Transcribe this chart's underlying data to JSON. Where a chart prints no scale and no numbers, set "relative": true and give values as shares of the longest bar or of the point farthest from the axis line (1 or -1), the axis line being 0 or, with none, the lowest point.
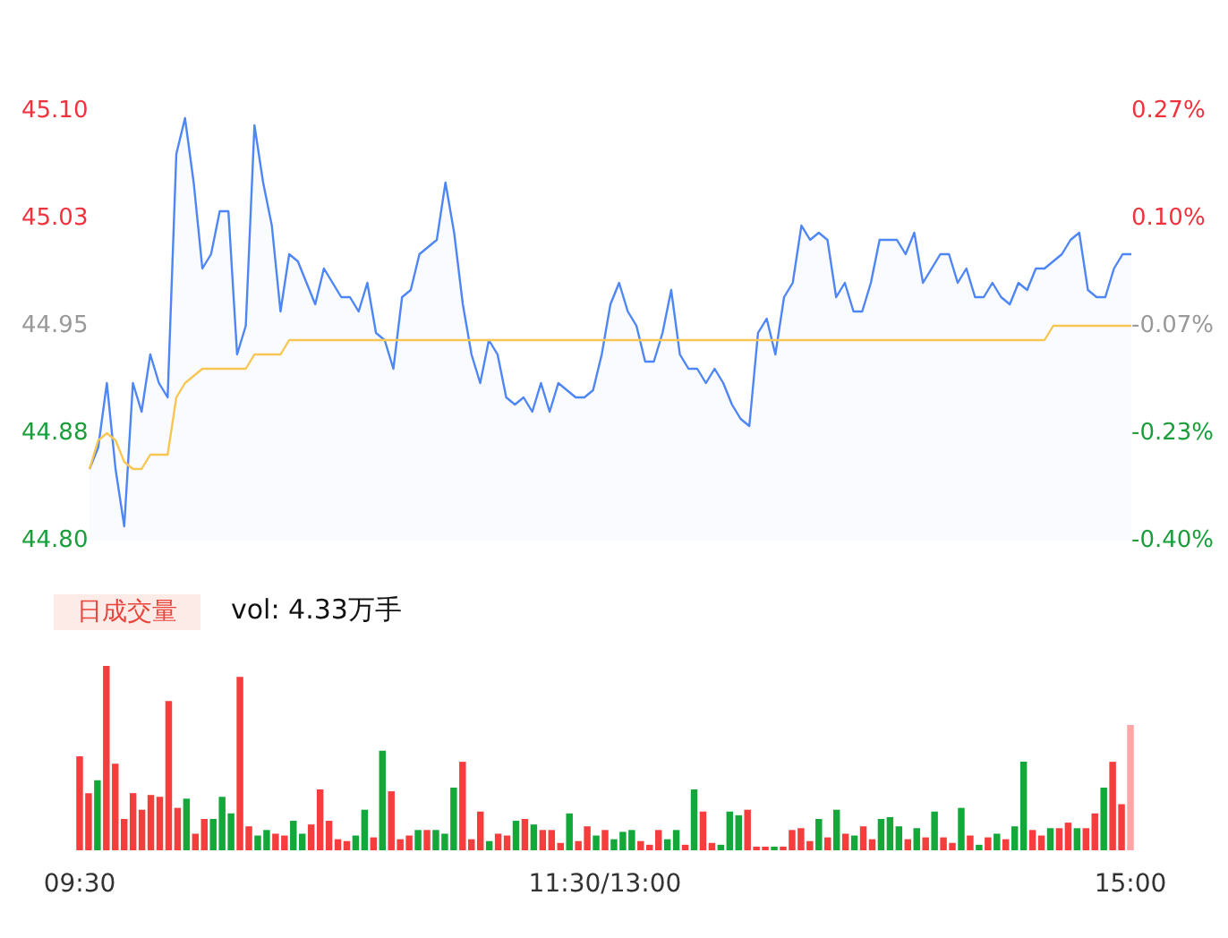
{
  "chart_data": [
    {
      "type": "line",
      "marker": "none",
      "categories": [
        null,
        null,
        null,
        null,
        null,
        null,
        null,
        null,
        null,
        null,
        null,
        null,
        null,
        null,
        null,
        null,
        null,
        null,
        null,
        null,
        null,
        null,
        null,
        null,
        null,
        null,
        null,
        null,
        null,
        null,
        null,
        null,
        null,
        null,
        null,
        null,
        null,
        null,
        null,
        null,
        null,
        null,
        null,
        null,
        null,
        null,
        null,
        null,
        null,
        null,
        null,
        null,
        null,
        null,
        null,
        null,
        null,
        null,
        null,
        null,
        null,
        null,
        null,
        null,
        null,
        null,
        null,
        null,
        null,
        null,
        null,
        null,
        null,
        null,
        null,
        null,
        null,
        null,
        null,
        null,
        null,
        null,
        null,
        null,
        null,
        null,
        null,
        null,
        null,
        null,
        null,
        null,
        null,
        null,
        null,
        null,
        null,
        null,
        null,
        null,
        null,
        null,
        null,
        null,
        null,
        null,
        null,
        null,
        null,
        null,
        null,
        null,
        null,
        null,
        null,
        null,
        null,
        null,
        null,
        null,
        null
      ],
      "ylim": [
        44.8,
        45.1
      ],
      "yticks": [
        {
          "value": 44.8,
          "label": "44.80"
        },
        {
          "value": 44.875,
          "label": "44.88"
        },
        {
          "value": 44.95,
          "label": "44.95"
        },
        {
          "value": 45.025,
          "label": "45.03"
        },
        {
          "value": 45.1,
          "label": "45.10"
        }
      ],
      "y2lim": [
        -0.4,
        0.27
      ],
      "y2ticks": [
        {
          "value": -0.4,
          "label": "-0.40%"
        },
        {
          "value": -0.2325,
          "label": "-0.23%"
        },
        {
          "value": -0.065,
          "label": "-0.07%"
        },
        {
          "value": 0.1025,
          "label": "0.10%"
        },
        {
          "value": 0.27,
          "label": "0.27%"
        }
      ],
      "series": [
        {
          "type": "area",
          "color": "#4e86f5",
          "values": [
            44.85,
            44.865,
            44.91,
            44.85,
            44.81,
            44.91,
            44.89,
            44.93,
            44.91,
            44.9,
            45.07,
            45.095,
            45.05,
            44.99,
            45.0,
            45.03,
            45.03,
            44.93,
            44.95,
            45.09,
            45.05,
            45.02,
            44.96,
            45.0,
            44.995,
            44.98,
            44.965,
            44.99,
            44.98,
            44.97,
            44.97,
            44.96,
            44.98,
            44.945,
            44.94,
            44.92,
            44.97,
            44.975,
            45.0,
            45.005,
            45.01,
            45.05,
            45.015,
            44.965,
            44.93,
            44.91,
            44.94,
            44.93,
            44.9,
            44.895,
            44.9,
            44.89,
            44.91,
            44.89,
            44.91,
            44.905,
            44.9,
            44.9,
            44.905,
            44.93,
            44.965,
            44.98,
            44.96,
            44.95,
            44.925,
            44.925,
            44.945,
            44.975,
            44.93,
            44.92,
            44.92,
            44.91,
            44.92,
            44.91,
            44.895,
            44.885,
            44.88,
            44.945,
            44.955,
            44.93,
            44.97,
            44.98,
            45.02,
            45.01,
            45.015,
            45.01,
            44.97,
            44.98,
            44.96,
            44.96,
            44.98,
            45.01,
            45.01,
            45.01,
            45.0,
            45.015,
            44.98,
            44.99,
            45.0,
            45.0,
            44.98,
            44.99,
            44.97,
            44.97,
            44.98,
            44.97,
            44.965,
            44.98,
            44.975,
            44.99,
            44.99,
            44.995,
            45.0,
            45.01,
            45.015,
            44.975,
            44.97,
            44.97,
            44.99,
            45.0,
            45.0
          ]
        },
        {
          "type": "line",
          "color": "#f8c753",
          "values": [
            44.85,
            44.87,
            44.875,
            44.87,
            44.855,
            44.85,
            44.85,
            44.86,
            44.86,
            44.86,
            44.9,
            44.91,
            44.915,
            44.92,
            44.92,
            44.92,
            44.92,
            44.92,
            44.92,
            44.93,
            44.93,
            44.93,
            44.93,
            44.94,
            44.94,
            44.94,
            44.94,
            44.94,
            44.94,
            44.94,
            44.94,
            44.94,
            44.94,
            44.94,
            44.94,
            44.94,
            44.94,
            44.94,
            44.94,
            44.94,
            44.94,
            44.94,
            44.94,
            44.94,
            44.94,
            44.94,
            44.94,
            44.94,
            44.94,
            44.94,
            44.94,
            44.94,
            44.94,
            44.94,
            44.94,
            44.94,
            44.94,
            44.94,
            44.94,
            44.94,
            44.94,
            44.94,
            44.94,
            44.94,
            44.94,
            44.94,
            44.94,
            44.94,
            44.94,
            44.94,
            44.94,
            44.94,
            44.94,
            44.94,
            44.94,
            44.94,
            44.94,
            44.94,
            44.94,
            44.94,
            44.94,
            44.94,
            44.94,
            44.94,
            44.94,
            44.94,
            44.94,
            44.94,
            44.94,
            44.94,
            44.94,
            44.94,
            44.94,
            44.94,
            44.94,
            44.94,
            44.94,
            44.94,
            44.94,
            44.94,
            44.94,
            44.94,
            44.94,
            44.94,
            44.94,
            44.94,
            44.94,
            44.94,
            44.94,
            44.94,
            44.94,
            44.95,
            44.95,
            44.95,
            44.95,
            44.95,
            44.95,
            44.95,
            44.95,
            44.95,
            44.95
          ]
        }
      ]
    },
    {
      "type": "bar",
      "relative": true,
      "annotations": [
        "日成交量",
        "vol: 4.33万手"
      ],
      "categories": [
        "09:30",
        null,
        null,
        null,
        null,
        null,
        null,
        null,
        null,
        null,
        null,
        null,
        null,
        null,
        null,
        null,
        null,
        null,
        null,
        null,
        null,
        null,
        null,
        null,
        null,
        null,
        null,
        null,
        null,
        null,
        null,
        null,
        null,
        null,
        null,
        null,
        null,
        null,
        null,
        null,
        null,
        null,
        null,
        null,
        null,
        null,
        null,
        null,
        null,
        null,
        null,
        null,
        null,
        null,
        null,
        null,
        null,
        null,
        null,
        "11:30/13:00",
        null,
        null,
        null,
        null,
        null,
        null,
        null,
        null,
        null,
        null,
        null,
        null,
        null,
        null,
        null,
        null,
        null,
        null,
        null,
        null,
        null,
        null,
        null,
        null,
        null,
        null,
        null,
        null,
        null,
        null,
        null,
        null,
        null,
        null,
        null,
        null,
        null,
        null,
        null,
        null,
        null,
        null,
        null,
        null,
        null,
        null,
        null,
        null,
        null,
        null,
        null,
        null,
        null,
        null,
        null,
        null,
        null,
        null,
        "15:00"
      ],
      "values": [
        0.51,
        0.31,
        0.38,
        1,
        0.47,
        0.17,
        0.31,
        0.22,
        0.3,
        0.29,
        0.81,
        0.23,
        0.28,
        0.09,
        0.17,
        0.17,
        0.29,
        0.2,
        0.94,
        0.13,
        0.08,
        0.11,
        0.09,
        0.08,
        0.16,
        0.09,
        0.14,
        0.33,
        0.16,
        0.06,
        0.05,
        0.08,
        0.22,
        0.07,
        0.54,
        0.32,
        0.06,
        0.08,
        0.11,
        0.11,
        0.11,
        0.09,
        0.34,
        0.48,
        0.06,
        0.21,
        0.05,
        0.09,
        0.08,
        0.16,
        0.17,
        0.14,
        0.11,
        0.11,
        0.04,
        0.2,
        0.05,
        0.13,
        0.08,
        0.11,
        0.06,
        0.1,
        0.11,
        0.05,
        0.03,
        0.11,
        0.06,
        0.11,
        0.03,
        0.33,
        0.21,
        0.04,
        0.03,
        0.21,
        0.19,
        0.22,
        0.02,
        0.02,
        0.02,
        0.02,
        0.11,
        0.12,
        0.05,
        0.17,
        0.07,
        0.22,
        0.09,
        0.08,
        0.13,
        0.06,
        0.17,
        0.18,
        0.13,
        0.06,
        0.12,
        0.07,
        0.21,
        0.07,
        0.04,
        0.23,
        0.08,
        0.03,
        0.07,
        0.09,
        0.06,
        0.13,
        0.48,
        0.11,
        0.08,
        0.12,
        0.12,
        0.15,
        0.12,
        0.12,
        0.2,
        0.34,
        0.48,
        0.25,
        0.68
      ],
      "colors": [
        "#f53d3d",
        "#f53d3d",
        "#14a83b",
        "#f53d3d",
        "#f53d3d",
        "#f53d3d",
        "#f53d3d",
        "#f53d3d",
        "#f53d3d",
        "#f53d3d",
        "#f53d3d",
        "#f53d3d",
        "#14a83b",
        "#f53d3d",
        "#f53d3d",
        "#14a83b",
        "#14a83b",
        "#14a83b",
        "#f53d3d",
        "#f53d3d",
        "#14a83b",
        "#14a83b",
        "#f53d3d",
        "#f53d3d",
        "#14a83b",
        "#14a83b",
        "#f53d3d",
        "#f53d3d",
        "#f53d3d",
        "#f53d3d",
        "#f53d3d",
        "#14a83b",
        "#14a83b",
        "#f53d3d",
        "#14a83b",
        "#f53d3d",
        "#f53d3d",
        "#f53d3d",
        "#14a83b",
        "#f53d3d",
        "#14a83b",
        "#14a83b",
        "#14a83b",
        "#f53d3d",
        "#f53d3d",
        "#f53d3d",
        "#14a83b",
        "#f53d3d",
        "#f53d3d",
        "#14a83b",
        "#f53d3d",
        "#14a83b",
        "#f53d3d",
        "#f53d3d",
        "#f53d3d",
        "#14a83b",
        "#f53d3d",
        "#f53d3d",
        "#14a83b",
        "#f53d3d",
        "#14a83b",
        "#14a83b",
        "#14a83b",
        "#f53d3d",
        "#f53d3d",
        "#f53d3d",
        "#14a83b",
        "#14a83b",
        "#f53d3d",
        "#14a83b",
        "#f53d3d",
        "#f53d3d",
        "#14a83b",
        "#14a83b",
        "#14a83b",
        "#f53d3d",
        "#f53d3d",
        "#f53d3d",
        "#14a83b",
        "#f53d3d",
        "#f53d3d",
        "#f53d3d",
        "#f53d3d",
        "#14a83b",
        "#f53d3d",
        "#14a83b",
        "#f53d3d",
        "#14a83b",
        "#f53d3d",
        "#f53d3d",
        "#14a83b",
        "#14a83b",
        "#14a83b",
        "#f53d3d",
        "#14a83b",
        "#f53d3d",
        "#14a83b",
        "#f53d3d",
        "#f53d3d",
        "#14a83b",
        "#f53d3d",
        "#14a83b",
        "#f53d3d",
        "#14a83b",
        "#f53d3d",
        "#14a83b",
        "#14a83b",
        "#f53d3d",
        "#f53d3d",
        "#14a83b",
        "#f53d3d",
        "#f53d3d",
        "#14a83b",
        "#f53d3d",
        "#f53d3d",
        "#14a83b",
        "#f53d3d",
        "#f53d3d",
        "#ffa5a5"
      ]
    }
  ]
}
